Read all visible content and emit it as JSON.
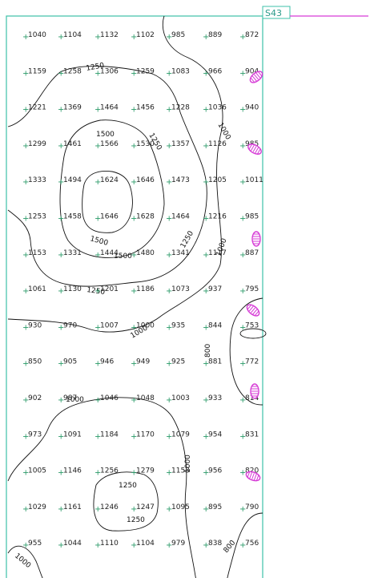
{
  "sheet": {
    "label": "S43",
    "border_color": "#3cc0a8",
    "leader_color": "#d63bd6"
  },
  "colors": {
    "cross": "#2a9a68",
    "marker": "#d63bd6",
    "contour": "#111111"
  },
  "grid": {
    "rows": [
      [
        "1040",
        "1104",
        "1132",
        "1102",
        "985",
        "889",
        "872"
      ],
      [
        "1159",
        "1258",
        "1306",
        "1259",
        "1083",
        "966",
        "904"
      ],
      [
        "1221",
        "1369",
        "1464",
        "1456",
        "1228",
        "1036",
        "940"
      ],
      [
        "1299",
        "1461",
        "1566",
        "1530",
        "1357",
        "1126",
        "985"
      ],
      [
        "1333",
        "1494",
        "1624",
        "1646",
        "1473",
        "1205",
        "1011"
      ],
      [
        "1253",
        "1458",
        "1646",
        "1628",
        "1464",
        "1216",
        "985"
      ],
      [
        "1153",
        "1331",
        "1444",
        "1480",
        "1341",
        "1117",
        "887"
      ],
      [
        "1061",
        "1130",
        "1201",
        "1186",
        "1073",
        "937",
        "795"
      ],
      [
        "930",
        "970",
        "1007",
        "1000",
        "935",
        "844",
        "753"
      ],
      [
        "850",
        "905",
        "946",
        "949",
        "925",
        "881",
        "772"
      ],
      [
        "902",
        "987",
        "1046",
        "1048",
        "1003",
        "933",
        "814"
      ],
      [
        "973",
        "1091",
        "1184",
        "1170",
        "1079",
        "954",
        "831"
      ],
      [
        "1005",
        "1146",
        "1256",
        "1279",
        "1153",
        "956",
        "820"
      ],
      [
        "1029",
        "1161",
        "1246",
        "1247",
        "1095",
        "895",
        "790"
      ],
      [
        "955",
        "1044",
        "1110",
        "1104",
        "979",
        "838",
        "756"
      ]
    ]
  },
  "contour_labels": [
    "1250",
    "1500",
    "1500",
    "1250",
    "1000",
    "1250",
    "1000",
    "1250",
    "1500",
    "1250",
    "1000",
    "800",
    "1000",
    "1000",
    "1250",
    "800",
    "1000"
  ],
  "markers": {
    "icon": "hatched-oval-marker-icon",
    "count": 8
  }
}
